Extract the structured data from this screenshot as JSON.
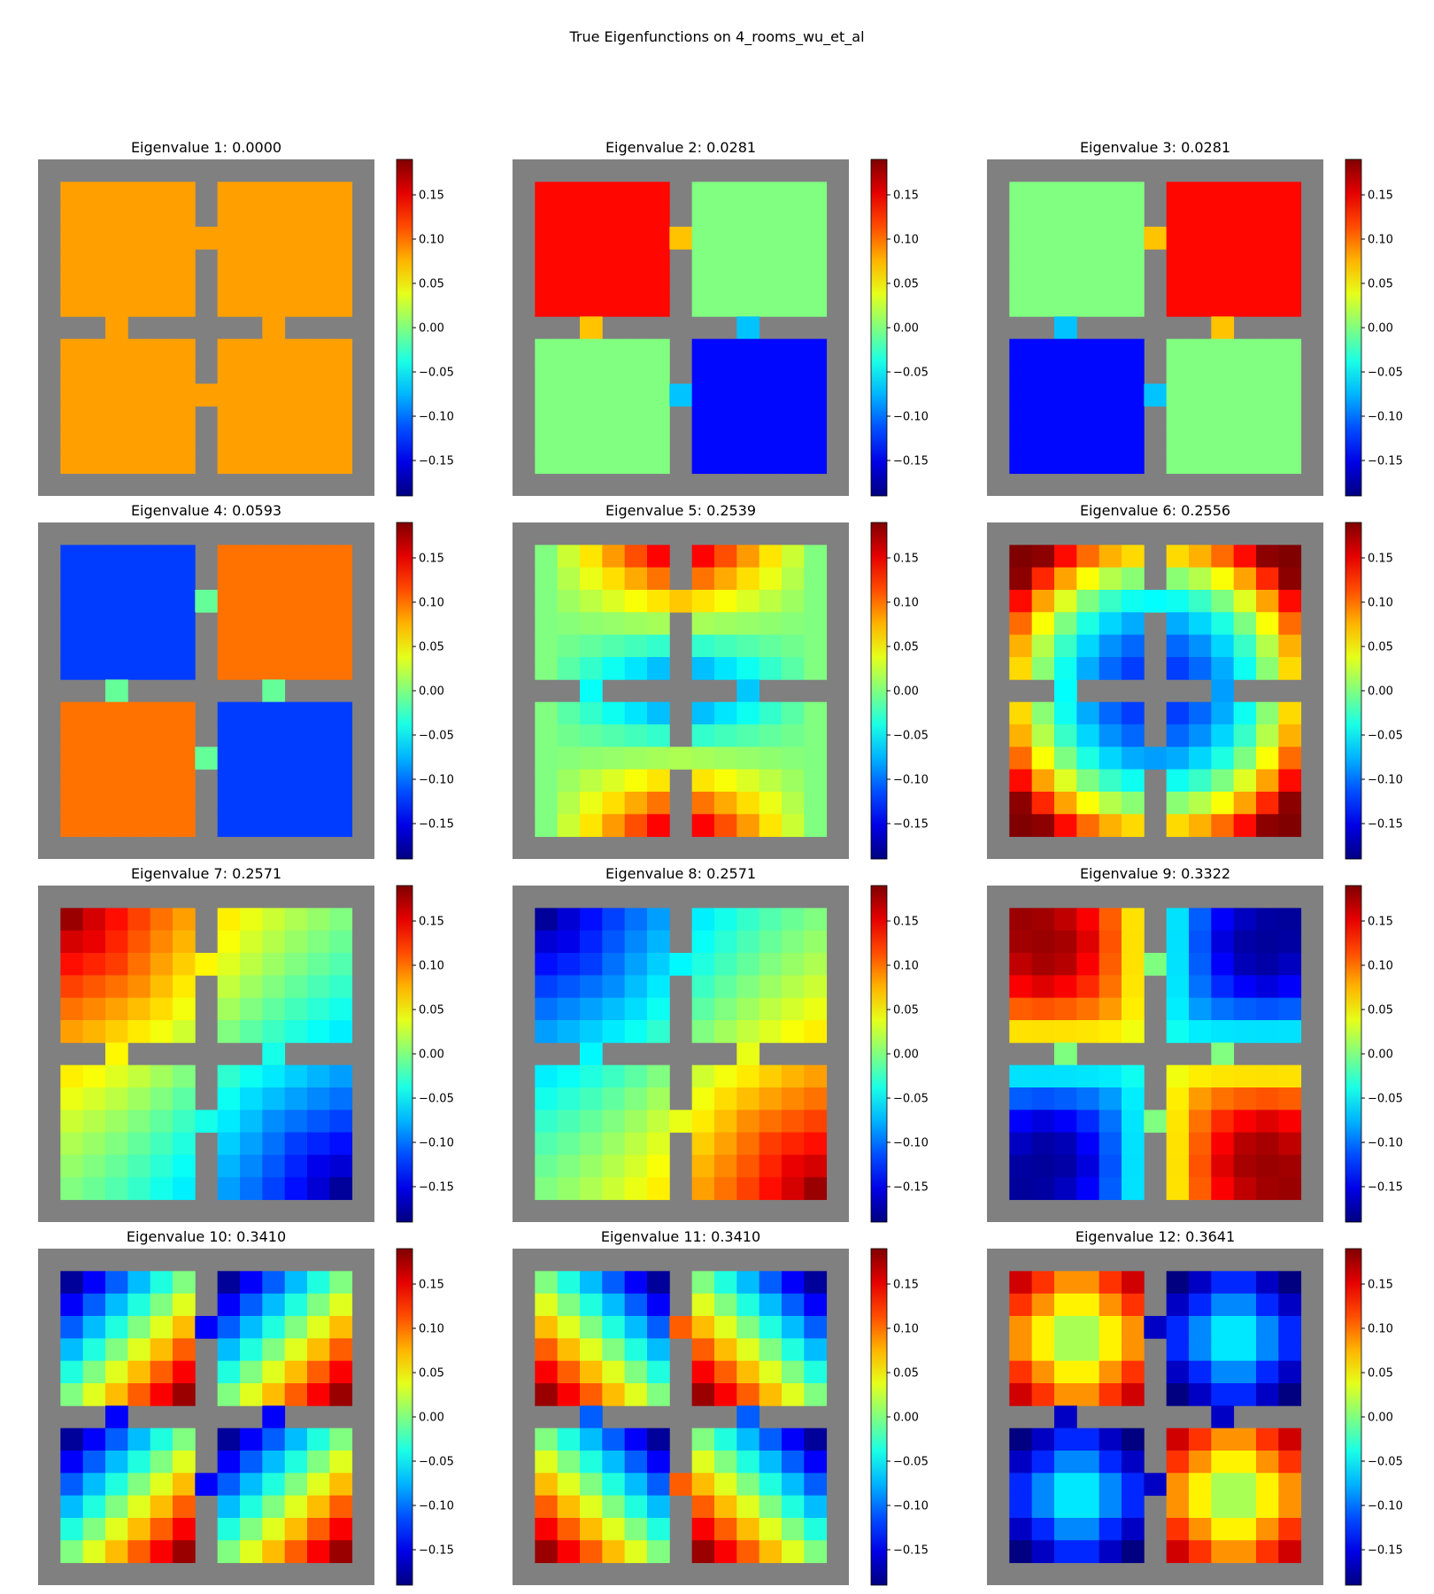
{
  "title": "True Eigenfunctions on 4_rooms_wu_et_al",
  "colorbar": {
    "min": -0.19,
    "max": 0.19,
    "ticks": [
      0.15,
      0.1,
      0.05,
      0.0,
      -0.05,
      -0.1,
      -0.15
    ],
    "tick_labels": [
      "0.15",
      "0.10",
      "0.05",
      "0.00",
      "−0.05",
      "−0.10",
      "−0.15"
    ],
    "colormap": "jet"
  },
  "wall_color": "#808080",
  "chart_data": [
    {
      "type": "heatmap",
      "title": "Eigenvalue 1: 0.0000",
      "eigenvalue": 0.0,
      "ptype": "const",
      "a": 0.083
    },
    {
      "type": "heatmap",
      "title": "Eigenvalue 2: 0.0281",
      "eigenvalue": 0.0281,
      "ptype": "rooms",
      "a": 0.14,
      "b": 0.0,
      "c": 0.0,
      "d": -0.14
    },
    {
      "type": "heatmap",
      "title": "Eigenvalue 3: 0.0281",
      "eigenvalue": 0.0281,
      "ptype": "rooms",
      "a": 0.0,
      "b": 0.14,
      "c": -0.14,
      "d": 0.0
    },
    {
      "type": "heatmap",
      "title": "Eigenvalue 4: 0.0593",
      "eigenvalue": 0.0593,
      "ptype": "rooms",
      "a": -0.12,
      "b": 0.1,
      "c": 0.1,
      "d": -0.12
    },
    {
      "type": "heatmap",
      "title": "Eigenvalue 5: 0.2539",
      "eigenvalue": 0.2539,
      "ptype": "radial",
      "a": 0.17,
      "b": -0.17
    },
    {
      "type": "heatmap",
      "title": "Eigenvalue 6: 0.2556",
      "eigenvalue": 0.2556,
      "ptype": "corner",
      "a": 0.18,
      "b": -0.13
    },
    {
      "type": "heatmap",
      "title": "Eigenvalue 7: 0.2571",
      "eigenvalue": 0.2571,
      "ptype": "diag",
      "a": 0.18,
      "b": -0.18
    },
    {
      "type": "heatmap",
      "title": "Eigenvalue 8: 0.2571",
      "eigenvalue": 0.2571,
      "ptype": "diag",
      "a": -0.18,
      "b": 0.18
    },
    {
      "type": "heatmap",
      "title": "Eigenvalue 9: 0.3322",
      "eigenvalue": 0.3322,
      "ptype": "rotate",
      "a": 0.18,
      "b": -0.18
    },
    {
      "type": "heatmap",
      "title": "Eigenvalue 10: 0.3410",
      "eigenvalue": 0.341,
      "ptype": "roomgrad",
      "a": -0.18,
      "b": 0.18
    },
    {
      "type": "heatmap",
      "title": "Eigenvalue 11: 0.3410",
      "eigenvalue": 0.341,
      "ptype": "roomgrad2",
      "a": -0.18,
      "b": 0.18
    },
    {
      "type": "heatmap",
      "title": "Eigenvalue 12: 0.3641",
      "eigenvalue": 0.3641,
      "ptype": "checker",
      "a": 0.18,
      "b": -0.18
    }
  ]
}
